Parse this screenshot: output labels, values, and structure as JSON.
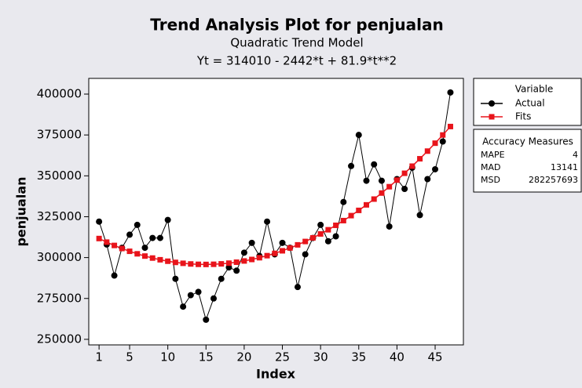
{
  "chart_data": {
    "type": "line",
    "title": "Trend Analysis Plot for penjualan",
    "subtitle": "Quadratic Trend Model",
    "equation": "Yt = 314010 - 2442*t + 81.9*t**2",
    "x_label": "Index",
    "y_label": "penjualan",
    "x": [
      1,
      2,
      3,
      4,
      5,
      6,
      7,
      8,
      9,
      10,
      11,
      12,
      13,
      14,
      15,
      16,
      17,
      18,
      19,
      20,
      21,
      22,
      23,
      24,
      25,
      26,
      27,
      28,
      29,
      30,
      31,
      32,
      33,
      34,
      35,
      36,
      37,
      38,
      39,
      40,
      41,
      42,
      43,
      44,
      45,
      46,
      47
    ],
    "series": [
      {
        "name": "Actual",
        "color": "#000000",
        "marker": "circle",
        "values": [
          322000,
          308000,
          289000,
          306000,
          314000,
          320000,
          306000,
          312000,
          312000,
          323000,
          287000,
          270000,
          277000,
          279000,
          262000,
          275000,
          287000,
          294000,
          292000,
          303000,
          309000,
          301000,
          322000,
          302000,
          309000,
          306000,
          282000,
          302000,
          312000,
          320000,
          310000,
          313000,
          334000,
          356000,
          375000,
          347000,
          357000,
          347000,
          319000,
          348000,
          342000,
          355000,
          326000,
          348000,
          354000,
          371000,
          401000
        ]
      },
      {
        "name": "Fits",
        "color": "#e8141b",
        "marker": "square",
        "values": [
          311649.9,
          309453.6,
          307421.1,
          305552.4,
          303847.5,
          302306.4,
          300929.1,
          299715.6,
          298665.9,
          297780,
          297057.9,
          296499.6,
          296105.1,
          295874.4,
          295807.5,
          295904.4,
          296165.1,
          296589.6,
          297177.9,
          297930,
          298845.9,
          299925.6,
          301169.1,
          302576.4,
          304147.5,
          305882.4,
          307781.1,
          309843.6,
          312069.9,
          314460,
          317013.9,
          319731.6,
          322613.1,
          325658.4,
          328867.5,
          332240.4,
          335777.1,
          339477.6,
          343341.9,
          347370,
          351561.9,
          355917.6,
          360437.1,
          365120.4,
          369967.5,
          374978.4,
          380153.1
        ]
      }
    ],
    "xlim": [
      -0.35,
      48.7
    ],
    "xticks": [
      1,
      5,
      10,
      15,
      20,
      25,
      30,
      35,
      40,
      45
    ],
    "ylim": [
      246600,
      409600
    ],
    "yticks": [
      250000,
      275000,
      300000,
      325000,
      350000,
      375000,
      400000
    ],
    "legend_title": "Variable",
    "accuracy": {
      "title": "Accuracy Measures",
      "measures": [
        {
          "name": "MAPE",
          "value": 4
        },
        {
          "name": "MAD",
          "value": 13141
        },
        {
          "name": "MSD",
          "value": 282257693
        }
      ]
    }
  }
}
